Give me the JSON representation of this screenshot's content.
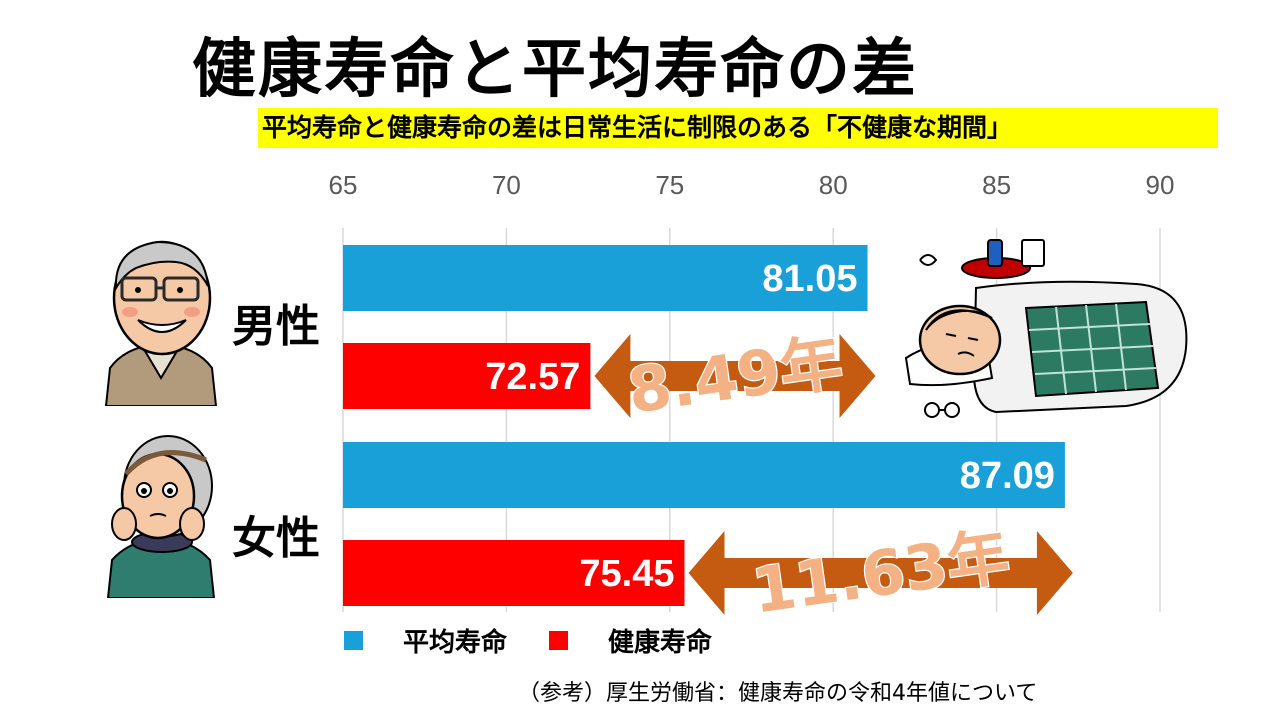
{
  "title": "健康寿命と平均寿命の差",
  "subtitle": "平均寿命と健康寿命の差は日常生活に制限のある「不健康な期間」",
  "source": "（参考）厚生労働省：健康寿命の令和4年値について",
  "groups": {
    "male": "男性",
    "female": "女性"
  },
  "legend": {
    "avg": "平均寿命",
    "healthy": "健康寿命"
  },
  "colors": {
    "avg": "#1aa0d8",
    "healthy": "#ff0000",
    "arrow": "#c55a11",
    "gap_text": "#f4b183",
    "grid": "#d9d9d9",
    "tick": "#595959"
  },
  "chart_data": {
    "type": "bar",
    "orientation": "horizontal",
    "categories": [
      "男性",
      "女性"
    ],
    "series": [
      {
        "name": "平均寿命",
        "values": [
          81.05,
          87.09
        ]
      },
      {
        "name": "健康寿命",
        "values": [
          72.57,
          75.45
        ]
      }
    ],
    "value_labels": {
      "男性": {
        "平均寿命": "81.05",
        "健康寿命": "72.57"
      },
      "女性": {
        "平均寿命": "87.09",
        "健康寿命": "75.45"
      }
    },
    "gap_labels": [
      "8.49年",
      "11.63年"
    ],
    "xlim": [
      65,
      90
    ],
    "xticks": [
      65,
      70,
      75,
      80,
      85,
      90
    ],
    "grid": true,
    "legend_position": "bottom"
  }
}
